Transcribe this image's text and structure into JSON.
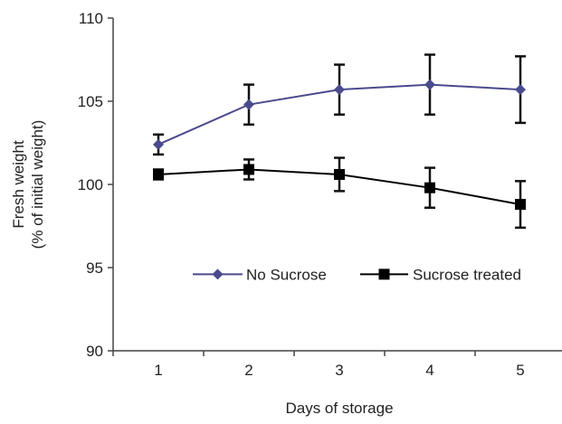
{
  "chart_data": {
    "type": "line",
    "title": "",
    "xlabel": "Days of storage",
    "ylabel": [
      "Fresh weight",
      "(% of initial weight)"
    ],
    "categories": [
      1,
      2,
      3,
      4,
      5
    ],
    "ylim": [
      90,
      110
    ],
    "yticks": [
      90,
      95,
      100,
      105,
      110
    ],
    "grid": false,
    "legend_position": "inside-middle",
    "series": [
      {
        "name": "No Sucrose",
        "color": "#4a4a8e",
        "marker": "diamond",
        "values": [
          102.4,
          104.8,
          105.7,
          106.0,
          105.7
        ],
        "error": [
          0.6,
          1.2,
          1.5,
          1.8,
          2.0
        ]
      },
      {
        "name": "Sucrose treated",
        "color": "#000000",
        "marker": "square",
        "values": [
          100.6,
          100.9,
          100.6,
          99.8,
          98.8
        ],
        "error": [
          0.3,
          0.6,
          1.0,
          1.2,
          1.4
        ]
      }
    ]
  }
}
